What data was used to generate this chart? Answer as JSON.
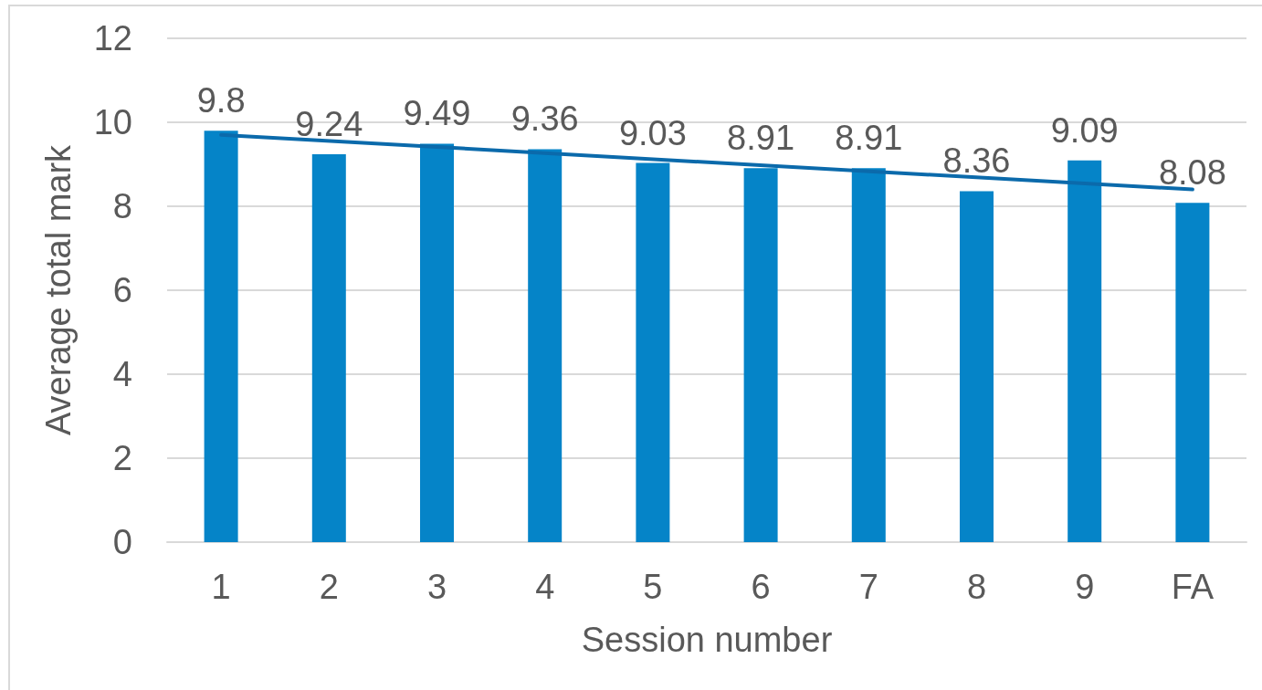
{
  "chart_data": {
    "type": "bar",
    "xlabel": "Session number",
    "ylabel": "Average total mark",
    "categories": [
      "1",
      "2",
      "3",
      "4",
      "5",
      "6",
      "7",
      "8",
      "9",
      "FA"
    ],
    "series": [
      {
        "color": "#0584c8",
        "values": [
          9.8,
          9.24,
          9.49,
          9.36,
          9.03,
          8.91,
          8.91,
          8.36,
          9.09,
          8.08
        ],
        "value_labels": [
          "9.8",
          "9.24",
          "9.49",
          "9.36",
          "9.03",
          "8.91",
          "8.91",
          "8.36",
          "9.09",
          "8.08"
        ]
      },
      {
        "type": "line",
        "color": "#0b6aab",
        "x": [
          "1",
          "FA"
        ],
        "values": [
          9.7,
          8.4
        ],
        "marker": "none"
      }
    ],
    "ylim": [
      0,
      12
    ],
    "yticks": [
      0,
      2,
      4,
      6,
      8,
      10,
      12
    ],
    "grid": "y"
  }
}
